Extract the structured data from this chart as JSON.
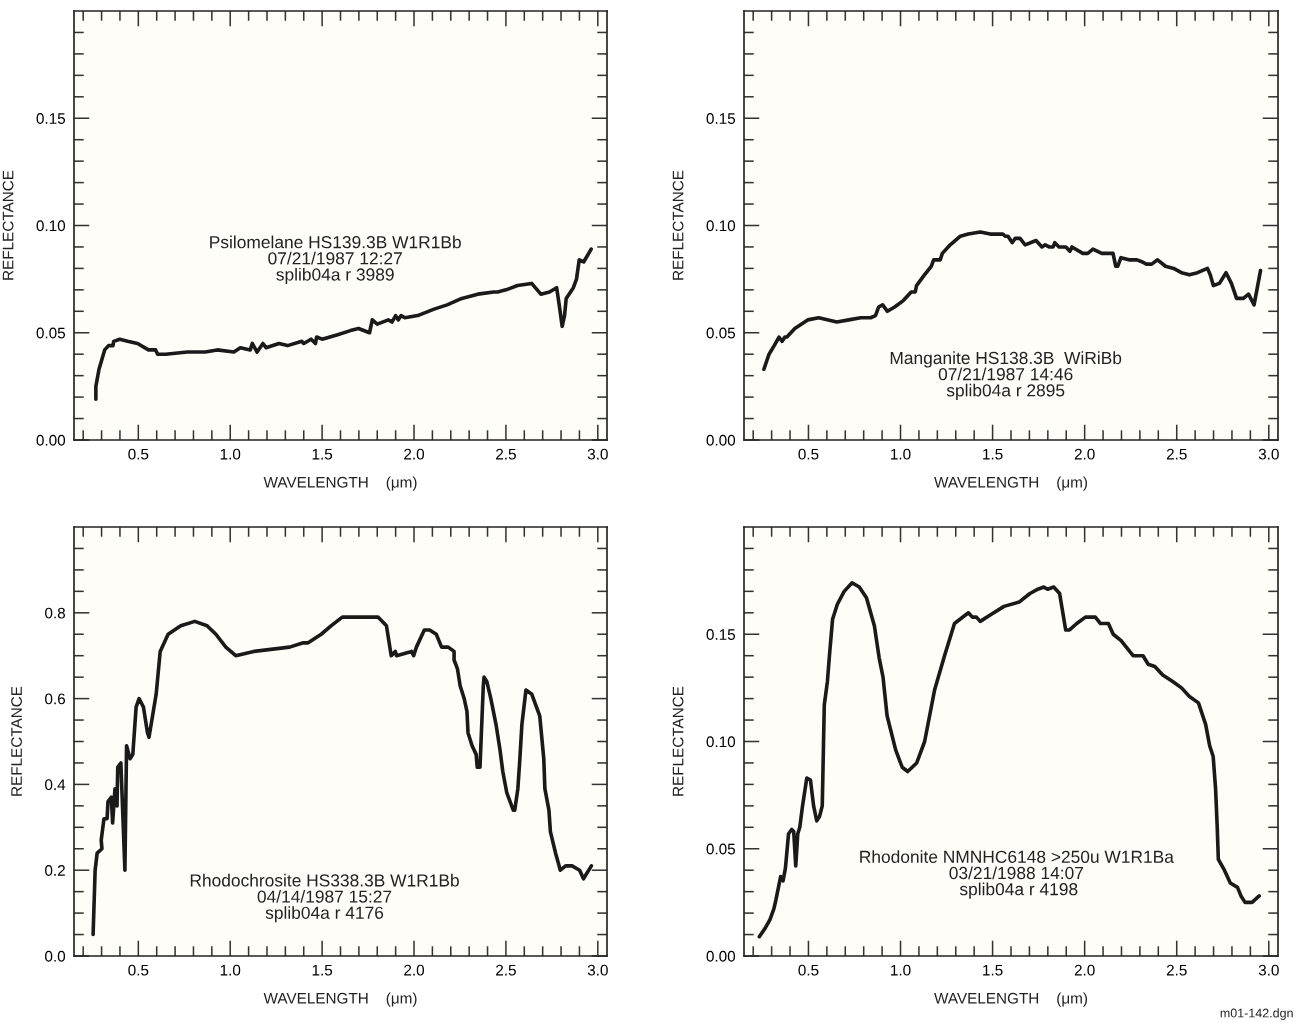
{
  "chart_data": [
    {
      "type": "line",
      "xlabel": "WAVELENGTH    (μm)",
      "ylabel": "REFLECTANCE",
      "grid": false,
      "marker": "none",
      "line_style": "solid",
      "annotations": [
        "Psilomelane HS139.3B W1R1Bb\n07/21/1987 12:27\nsplib04a r 3989"
      ],
      "xlim": [
        0.15,
        3.05
      ],
      "ylim": [
        0.0,
        0.2
      ],
      "xticks": [
        {
          "value": 0.2,
          "label": null
        },
        {
          "value": 0.3,
          "label": null
        },
        {
          "value": 0.4,
          "label": null
        },
        {
          "value": 0.5,
          "label": "0.5"
        },
        {
          "value": 0.6,
          "label": null
        },
        {
          "value": 0.7,
          "label": null
        },
        {
          "value": 0.8,
          "label": null
        },
        {
          "value": 0.9,
          "label": null
        },
        {
          "value": 1.0,
          "label": "1.0"
        },
        {
          "value": 1.1,
          "label": null
        },
        {
          "value": 1.2,
          "label": null
        },
        {
          "value": 1.3,
          "label": null
        },
        {
          "value": 1.4,
          "label": null
        },
        {
          "value": 1.5,
          "label": "1.5"
        },
        {
          "value": 1.6,
          "label": null
        },
        {
          "value": 1.7,
          "label": null
        },
        {
          "value": 1.8,
          "label": null
        },
        {
          "value": 1.9,
          "label": null
        },
        {
          "value": 2.0,
          "label": "2.0"
        },
        {
          "value": 2.1,
          "label": null
        },
        {
          "value": 2.2,
          "label": null
        },
        {
          "value": 2.3,
          "label": null
        },
        {
          "value": 2.4,
          "label": null
        },
        {
          "value": 2.5,
          "label": "2.5"
        },
        {
          "value": 2.6,
          "label": null
        },
        {
          "value": 2.7,
          "label": null
        },
        {
          "value": 2.8,
          "label": null
        },
        {
          "value": 2.9,
          "label": null
        },
        {
          "value": 3.0,
          "label": "3.0"
        }
      ],
      "yticks": [
        {
          "value": 0.0,
          "label": "0.00"
        },
        {
          "value": 0.01,
          "label": null
        },
        {
          "value": 0.02,
          "label": null
        },
        {
          "value": 0.03,
          "label": null
        },
        {
          "value": 0.04,
          "label": null
        },
        {
          "value": 0.05,
          "label": "0.05"
        },
        {
          "value": 0.06,
          "label": null
        },
        {
          "value": 0.07,
          "label": null
        },
        {
          "value": 0.08,
          "label": null
        },
        {
          "value": 0.09,
          "label": null
        },
        {
          "value": 0.1,
          "label": "0.10"
        },
        {
          "value": 0.11,
          "label": null
        },
        {
          "value": 0.12,
          "label": null
        },
        {
          "value": 0.13,
          "label": null
        },
        {
          "value": 0.14,
          "label": null
        },
        {
          "value": 0.15,
          "label": "0.15"
        },
        {
          "value": 0.16,
          "label": null
        },
        {
          "value": 0.17,
          "label": null
        },
        {
          "value": 0.18,
          "label": null
        },
        {
          "value": 0.19,
          "label": null
        }
      ],
      "series": [
        {
          "color": "#1a1a1a",
          "x": [
            0.269,
            0.269,
            0.286,
            0.317,
            0.338,
            0.362,
            0.366,
            0.399,
            0.442,
            0.496,
            0.555,
            0.594,
            0.605,
            0.648,
            0.767,
            0.864,
            0.929,
            1.02,
            1.055,
            1.109,
            1.12,
            1.146,
            1.178,
            1.195,
            1.265,
            1.312,
            1.39,
            1.4,
            1.44,
            1.464,
            1.47,
            1.5,
            1.58,
            1.654,
            1.698,
            1.758,
            1.773,
            1.8,
            1.86,
            1.88,
            1.9,
            1.914,
            1.93,
            1.95,
            2.02,
            2.109,
            2.18,
            2.26,
            2.347,
            2.433,
            2.455,
            2.5,
            2.563,
            2.64,
            2.69,
            2.737,
            2.776,
            2.79,
            2.806,
            2.819,
            2.828,
            2.867,
            2.884,
            2.899,
            2.923,
            2.964
          ],
          "values": [
            0.019,
            0.025,
            0.033,
            0.042,
            0.044,
            0.044,
            0.046,
            0.047,
            0.046,
            0.045,
            0.042,
            0.042,
            0.04,
            0.04,
            0.041,
            0.041,
            0.042,
            0.041,
            0.043,
            0.042,
            0.045,
            0.041,
            0.045,
            0.043,
            0.045,
            0.044,
            0.046,
            0.045,
            0.047,
            0.045,
            0.048,
            0.047,
            0.049,
            0.051,
            0.052,
            0.05,
            0.056,
            0.054,
            0.056,
            0.055,
            0.058,
            0.056,
            0.058,
            0.057,
            0.058,
            0.061,
            0.063,
            0.066,
            0.068,
            0.069,
            0.069,
            0.07,
            0.072,
            0.073,
            0.068,
            0.069,
            0.071,
            0.063,
            0.053,
            0.058,
            0.066,
            0.071,
            0.075,
            0.084,
            0.083,
            0.089
          ]
        }
      ]
    },
    {
      "type": "line",
      "xlabel": "WAVELENGTH    (μm)",
      "ylabel": "REFLECTANCE",
      "grid": false,
      "marker": "none",
      "line_style": "solid",
      "annotations": [
        "Manganite HS138.3B  WiRiBb\n07/21/1987 14:46\nsplib04a r 2895"
      ],
      "xlim": [
        0.15,
        3.05
      ],
      "ylim": [
        0.0,
        0.2
      ],
      "xticks": [
        {
          "value": 0.2,
          "label": null
        },
        {
          "value": 0.3,
          "label": null
        },
        {
          "value": 0.4,
          "label": null
        },
        {
          "value": 0.5,
          "label": "0.5"
        },
        {
          "value": 0.6,
          "label": null
        },
        {
          "value": 0.7,
          "label": null
        },
        {
          "value": 0.8,
          "label": null
        },
        {
          "value": 0.9,
          "label": null
        },
        {
          "value": 1.0,
          "label": "1.0"
        },
        {
          "value": 1.1,
          "label": null
        },
        {
          "value": 1.2,
          "label": null
        },
        {
          "value": 1.3,
          "label": null
        },
        {
          "value": 1.4,
          "label": null
        },
        {
          "value": 1.5,
          "label": "1.5"
        },
        {
          "value": 1.6,
          "label": null
        },
        {
          "value": 1.7,
          "label": null
        },
        {
          "value": 1.8,
          "label": null
        },
        {
          "value": 1.9,
          "label": null
        },
        {
          "value": 2.0,
          "label": "2.0"
        },
        {
          "value": 2.1,
          "label": null
        },
        {
          "value": 2.2,
          "label": null
        },
        {
          "value": 2.3,
          "label": null
        },
        {
          "value": 2.4,
          "label": null
        },
        {
          "value": 2.5,
          "label": "2.5"
        },
        {
          "value": 2.6,
          "label": null
        },
        {
          "value": 2.7,
          "label": null
        },
        {
          "value": 2.8,
          "label": null
        },
        {
          "value": 2.9,
          "label": null
        },
        {
          "value": 3.0,
          "label": "3.0"
        }
      ],
      "yticks": [
        {
          "value": 0.0,
          "label": "0.00"
        },
        {
          "value": 0.01,
          "label": null
        },
        {
          "value": 0.02,
          "label": null
        },
        {
          "value": 0.03,
          "label": null
        },
        {
          "value": 0.04,
          "label": null
        },
        {
          "value": 0.05,
          "label": "0.05"
        },
        {
          "value": 0.06,
          "label": null
        },
        {
          "value": 0.07,
          "label": null
        },
        {
          "value": 0.08,
          "label": null
        },
        {
          "value": 0.09,
          "label": null
        },
        {
          "value": 0.1,
          "label": "0.10"
        },
        {
          "value": 0.11,
          "label": null
        },
        {
          "value": 0.12,
          "label": null
        },
        {
          "value": 0.13,
          "label": null
        },
        {
          "value": 0.14,
          "label": null
        },
        {
          "value": 0.15,
          "label": "0.15"
        },
        {
          "value": 0.16,
          "label": null
        },
        {
          "value": 0.17,
          "label": null
        },
        {
          "value": 0.18,
          "label": null
        },
        {
          "value": 0.19,
          "label": null
        }
      ],
      "series": [
        {
          "color": "#1a1a1a",
          "x": [
            0.258,
            0.286,
            0.314,
            0.34,
            0.357,
            0.372,
            0.383,
            0.426,
            0.496,
            0.556,
            0.654,
            0.719,
            0.784,
            0.838,
            0.864,
            0.881,
            0.903,
            0.929,
            0.968,
            1.015,
            1.058,
            1.08,
            1.087,
            1.13,
            1.167,
            1.18,
            1.216,
            1.227,
            1.27,
            1.325,
            1.368,
            1.433,
            1.487,
            1.53,
            1.556,
            1.569,
            1.584,
            1.606,
            1.623,
            1.649,
            1.677,
            1.736,
            1.768,
            1.786,
            1.807,
            1.829,
            1.838,
            1.861,
            1.898,
            1.92,
            1.931,
            1.99,
            2.017,
            2.045,
            2.093,
            2.132,
            2.154,
            2.169,
            2.18,
            2.197,
            2.24,
            2.284,
            2.314,
            2.335,
            2.364,
            2.396,
            2.439,
            2.483,
            2.526,
            2.569,
            2.613,
            2.667,
            2.682,
            2.699,
            2.732,
            2.768,
            2.797,
            2.825,
            2.862,
            2.89,
            2.92,
            2.955
          ],
          "values": [
            0.033,
            0.04,
            0.044,
            0.048,
            0.046,
            0.048,
            0.048,
            0.052,
            0.056,
            0.057,
            0.055,
            0.056,
            0.057,
            0.057,
            0.058,
            0.062,
            0.063,
            0.06,
            0.062,
            0.065,
            0.069,
            0.069,
            0.072,
            0.077,
            0.081,
            0.084,
            0.084,
            0.087,
            0.091,
            0.095,
            0.096,
            0.097,
            0.096,
            0.096,
            0.096,
            0.095,
            0.095,
            0.092,
            0.094,
            0.094,
            0.091,
            0.093,
            0.09,
            0.091,
            0.09,
            0.09,
            0.092,
            0.09,
            0.09,
            0.088,
            0.09,
            0.087,
            0.087,
            0.089,
            0.087,
            0.087,
            0.087,
            0.081,
            0.081,
            0.085,
            0.084,
            0.084,
            0.083,
            0.082,
            0.082,
            0.084,
            0.081,
            0.08,
            0.078,
            0.077,
            0.078,
            0.08,
            0.077,
            0.072,
            0.073,
            0.078,
            0.073,
            0.066,
            0.066,
            0.068,
            0.063,
            0.079
          ]
        }
      ]
    },
    {
      "type": "line",
      "xlabel": "WAVELENGTH    (μm)",
      "ylabel": "REFLECTANCE",
      "grid": false,
      "marker": "none",
      "line_style": "solid",
      "annotations": [
        "Rhodochrosite HS338.3B W1R1Bb\n04/14/1987 15:27\nsplib04a r 4176"
      ],
      "xlim": [
        0.15,
        3.05
      ],
      "ylim": [
        0.0,
        1.0
      ],
      "xticks": [
        {
          "value": 0.2,
          "label": null
        },
        {
          "value": 0.3,
          "label": null
        },
        {
          "value": 0.4,
          "label": null
        },
        {
          "value": 0.5,
          "label": "0.5"
        },
        {
          "value": 0.6,
          "label": null
        },
        {
          "value": 0.7,
          "label": null
        },
        {
          "value": 0.8,
          "label": null
        },
        {
          "value": 0.9,
          "label": null
        },
        {
          "value": 1.0,
          "label": "1.0"
        },
        {
          "value": 1.1,
          "label": null
        },
        {
          "value": 1.2,
          "label": null
        },
        {
          "value": 1.3,
          "label": null
        },
        {
          "value": 1.4,
          "label": null
        },
        {
          "value": 1.5,
          "label": "1.5"
        },
        {
          "value": 1.6,
          "label": null
        },
        {
          "value": 1.7,
          "label": null
        },
        {
          "value": 1.8,
          "label": null
        },
        {
          "value": 1.9,
          "label": null
        },
        {
          "value": 2.0,
          "label": "2.0"
        },
        {
          "value": 2.1,
          "label": null
        },
        {
          "value": 2.2,
          "label": null
        },
        {
          "value": 2.3,
          "label": null
        },
        {
          "value": 2.4,
          "label": null
        },
        {
          "value": 2.5,
          "label": "2.5"
        },
        {
          "value": 2.6,
          "label": null
        },
        {
          "value": 2.7,
          "label": null
        },
        {
          "value": 2.8,
          "label": null
        },
        {
          "value": 2.9,
          "label": null
        },
        {
          "value": 3.0,
          "label": "3.0"
        }
      ],
      "yticks": [
        {
          "value": 0.0,
          "label": "0.0"
        },
        {
          "value": 0.05,
          "label": null
        },
        {
          "value": 0.1,
          "label": null
        },
        {
          "value": 0.15,
          "label": null
        },
        {
          "value": 0.2,
          "label": "0.2"
        },
        {
          "value": 0.25,
          "label": null
        },
        {
          "value": 0.3,
          "label": null
        },
        {
          "value": 0.35,
          "label": null
        },
        {
          "value": 0.4,
          "label": "0.4"
        },
        {
          "value": 0.45,
          "label": null
        },
        {
          "value": 0.5,
          "label": null
        },
        {
          "value": 0.55,
          "label": null
        },
        {
          "value": 0.6,
          "label": "0.6"
        },
        {
          "value": 0.65,
          "label": null
        },
        {
          "value": 0.7,
          "label": null
        },
        {
          "value": 0.75,
          "label": null
        },
        {
          "value": 0.8,
          "label": "0.8"
        },
        {
          "value": 0.85,
          "label": null
        },
        {
          "value": 0.9,
          "label": null
        },
        {
          "value": 0.95,
          "label": null
        }
      ],
      "series": [
        {
          "color": "#1a1a1a",
          "x": [
            0.254,
            0.265,
            0.276,
            0.302,
            0.298,
            0.313,
            0.33,
            0.335,
            0.353,
            0.36,
            0.373,
            0.384,
            0.388,
            0.405,
            0.427,
            0.436,
            0.455,
            0.47,
            0.488,
            0.504,
            0.528,
            0.55,
            0.558,
            0.597,
            0.619,
            0.662,
            0.731,
            0.807,
            0.874,
            0.922,
            0.976,
            1.03,
            1.128,
            1.323,
            1.398,
            1.424,
            1.495,
            1.55,
            1.61,
            1.7,
            1.71,
            1.769,
            1.804,
            1.85,
            1.876,
            1.898,
            1.905,
            1.987,
            1.998,
            2.013,
            2.056,
            2.085,
            2.121,
            2.15,
            2.186,
            2.218,
            2.218,
            2.236,
            2.251,
            2.273,
            2.288,
            2.294,
            2.316,
            2.338,
            2.344,
            2.359,
            2.377,
            2.381,
            2.396,
            2.418,
            2.446,
            2.468,
            2.483,
            2.505,
            2.54,
            2.548,
            2.565,
            2.576,
            2.587,
            2.609,
            2.641,
            2.684,
            2.706,
            2.712,
            2.734,
            2.742,
            2.77,
            2.796,
            2.825,
            2.86,
            2.901,
            2.922,
            2.965
          ],
          "values": [
            0.05,
            0.2,
            0.24,
            0.25,
            0.27,
            0.32,
            0.32,
            0.36,
            0.37,
            0.31,
            0.39,
            0.35,
            0.44,
            0.45,
            0.2,
            0.49,
            0.46,
            0.47,
            0.58,
            0.6,
            0.58,
            0.52,
            0.51,
            0.61,
            0.71,
            0.75,
            0.77,
            0.78,
            0.77,
            0.75,
            0.72,
            0.7,
            0.71,
            0.72,
            0.73,
            0.73,
            0.75,
            0.77,
            0.79,
            0.79,
            0.79,
            0.79,
            0.79,
            0.77,
            0.7,
            0.71,
            0.7,
            0.71,
            0.7,
            0.72,
            0.76,
            0.76,
            0.75,
            0.72,
            0.72,
            0.71,
            0.69,
            0.67,
            0.63,
            0.6,
            0.57,
            0.52,
            0.49,
            0.47,
            0.44,
            0.44,
            0.63,
            0.65,
            0.64,
            0.6,
            0.54,
            0.48,
            0.43,
            0.38,
            0.34,
            0.34,
            0.39,
            0.46,
            0.54,
            0.62,
            0.61,
            0.56,
            0.46,
            0.39,
            0.34,
            0.29,
            0.24,
            0.2,
            0.21,
            0.21,
            0.2,
            0.18,
            0.21
          ]
        }
      ]
    },
    {
      "type": "line",
      "xlabel": "WAVELENGTH    (μm)",
      "ylabel": "REFLECTANCE",
      "grid": false,
      "marker": "none",
      "line_style": "solid",
      "annotations": [
        "Rhodonite NMNHC6148 >250u W1R1Ba\n03/21/1988 14:07\n splib04a r 4198",
        "m01-142.dgn"
      ],
      "xlim": [
        0.15,
        3.05
      ],
      "ylim": [
        0.0,
        0.2
      ],
      "xticks": [
        {
          "value": 0.2,
          "label": null
        },
        {
          "value": 0.3,
          "label": null
        },
        {
          "value": 0.4,
          "label": null
        },
        {
          "value": 0.5,
          "label": "0.5"
        },
        {
          "value": 0.6,
          "label": null
        },
        {
          "value": 0.7,
          "label": null
        },
        {
          "value": 0.8,
          "label": null
        },
        {
          "value": 0.9,
          "label": null
        },
        {
          "value": 1.0,
          "label": "1.0"
        },
        {
          "value": 1.1,
          "label": null
        },
        {
          "value": 1.2,
          "label": null
        },
        {
          "value": 1.3,
          "label": null
        },
        {
          "value": 1.4,
          "label": null
        },
        {
          "value": 1.5,
          "label": "1.5"
        },
        {
          "value": 1.6,
          "label": null
        },
        {
          "value": 1.7,
          "label": null
        },
        {
          "value": 1.8,
          "label": null
        },
        {
          "value": 1.9,
          "label": null
        },
        {
          "value": 2.0,
          "label": "2.0"
        },
        {
          "value": 2.1,
          "label": null
        },
        {
          "value": 2.2,
          "label": null
        },
        {
          "value": 2.3,
          "label": null
        },
        {
          "value": 2.4,
          "label": null
        },
        {
          "value": 2.5,
          "label": "2.5"
        },
        {
          "value": 2.6,
          "label": null
        },
        {
          "value": 2.7,
          "label": null
        },
        {
          "value": 2.8,
          "label": null
        },
        {
          "value": 2.9,
          "label": null
        },
        {
          "value": 3.0,
          "label": "3.0"
        }
      ],
      "yticks": [
        {
          "value": 0.0,
          "label": "0.00"
        },
        {
          "value": 0.01,
          "label": null
        },
        {
          "value": 0.02,
          "label": null
        },
        {
          "value": 0.03,
          "label": null
        },
        {
          "value": 0.04,
          "label": null
        },
        {
          "value": 0.05,
          "label": "0.05"
        },
        {
          "value": 0.06,
          "label": null
        },
        {
          "value": 0.07,
          "label": null
        },
        {
          "value": 0.08,
          "label": null
        },
        {
          "value": 0.09,
          "label": null
        },
        {
          "value": 0.1,
          "label": "0.10"
        },
        {
          "value": 0.11,
          "label": null
        },
        {
          "value": 0.12,
          "label": null
        },
        {
          "value": 0.13,
          "label": null
        },
        {
          "value": 0.14,
          "label": null
        },
        {
          "value": 0.15,
          "label": "0.15"
        },
        {
          "value": 0.16,
          "label": null
        },
        {
          "value": 0.17,
          "label": null
        },
        {
          "value": 0.18,
          "label": null
        },
        {
          "value": 0.19,
          "label": null
        }
      ],
      "series": [
        {
          "color": "#1a1a1a",
          "x": [
            0.233,
            0.265,
            0.291,
            0.312,
            0.323,
            0.349,
            0.362,
            0.375,
            0.392,
            0.409,
            0.42,
            0.431,
            0.442,
            0.453,
            0.468,
            0.491,
            0.511,
            0.528,
            0.545,
            0.56,
            0.575,
            0.586,
            0.603,
            0.614,
            0.631,
            0.657,
            0.694,
            0.737,
            0.776,
            0.815,
            0.858,
            0.884,
            0.905,
            0.927,
            0.974,
            1.009,
            1.039,
            1.088,
            1.131,
            1.185,
            1.239,
            1.293,
            1.369,
            1.39,
            1.412,
            1.433,
            1.487,
            1.562,
            1.644,
            1.703,
            1.746,
            1.778,
            1.799,
            1.832,
            1.864,
            1.897,
            1.918,
            1.957,
            2.004,
            2.058,
            2.086,
            2.129,
            2.155,
            2.198,
            2.263,
            2.317,
            2.345,
            2.381,
            2.424,
            2.478,
            2.526,
            2.569,
            2.618,
            2.657,
            2.679,
            2.698,
            2.711,
            2.72,
            2.726,
            2.759,
            2.791,
            2.83,
            2.849,
            2.871,
            2.909,
            2.948
          ],
          "values": [
            0.009,
            0.013,
            0.017,
            0.022,
            0.026,
            0.037,
            0.035,
            0.041,
            0.057,
            0.059,
            0.058,
            0.042,
            0.057,
            0.06,
            0.07,
            0.083,
            0.082,
            0.07,
            0.063,
            0.065,
            0.07,
            0.117,
            0.128,
            0.14,
            0.157,
            0.164,
            0.17,
            0.174,
            0.172,
            0.167,
            0.154,
            0.139,
            0.13,
            0.112,
            0.096,
            0.088,
            0.086,
            0.09,
            0.1,
            0.124,
            0.14,
            0.155,
            0.16,
            0.158,
            0.158,
            0.156,
            0.159,
            0.163,
            0.165,
            0.169,
            0.171,
            0.172,
            0.171,
            0.172,
            0.169,
            0.152,
            0.152,
            0.155,
            0.158,
            0.158,
            0.155,
            0.155,
            0.15,
            0.147,
            0.14,
            0.14,
            0.136,
            0.135,
            0.131,
            0.128,
            0.125,
            0.121,
            0.118,
            0.108,
            0.098,
            0.093,
            0.078,
            0.06,
            0.045,
            0.04,
            0.034,
            0.032,
            0.028,
            0.025,
            0.025,
            0.028
          ]
        }
      ]
    }
  ]
}
